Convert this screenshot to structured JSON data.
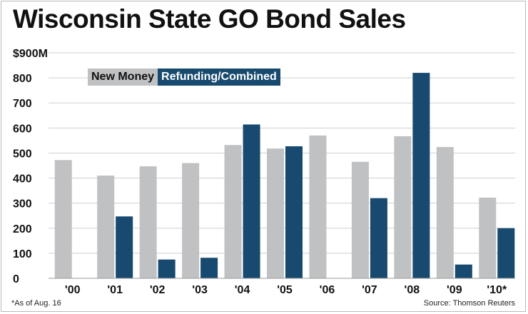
{
  "title": "Wisconsin State GO Bond Sales",
  "footnote": "*As of Aug. 16",
  "source": "Source: Thomson Reuters",
  "colors": {
    "new_money": "#c0c1c3",
    "refunding": "#174a6e",
    "grid": "#cfcfcf",
    "text": "#111111"
  },
  "chart_data": {
    "type": "bar",
    "title": "Wisconsin State GO Bond Sales",
    "categories": [
      "'00",
      "'01",
      "'02",
      "'03",
      "'04",
      "'05",
      "'06",
      "'07",
      "'08",
      "'09",
      "'10*"
    ],
    "series": [
      {
        "name": "New Money",
        "values": [
          472,
          410,
          447,
          460,
          532,
          518,
          570,
          465,
          567,
          524,
          322
        ]
      },
      {
        "name": "Refunding/Combined",
        "values": [
          0,
          247,
          75,
          82,
          614,
          527,
          0,
          320,
          820,
          55,
          200
        ]
      }
    ],
    "ylim": [
      0,
      900
    ],
    "yticks": [
      0,
      100,
      200,
      300,
      400,
      500,
      600,
      700,
      800,
      900
    ],
    "ytick_labels": [
      "0",
      "100",
      "200",
      "300",
      "400",
      "500",
      "600",
      "700",
      "800",
      "$900M"
    ],
    "grid": true,
    "legend_position": "top-left"
  }
}
